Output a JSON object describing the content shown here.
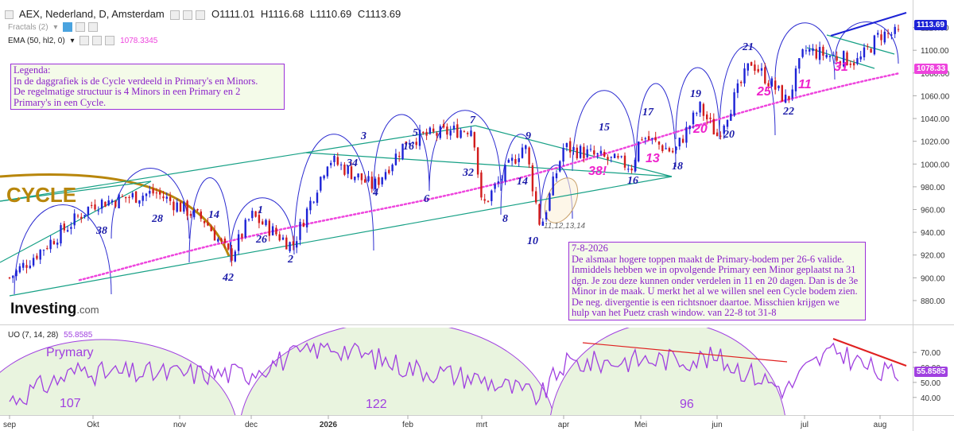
{
  "header": {
    "symbol": "AEX, Nederland, D, Amsterdam",
    "open": "O1111.01",
    "high": "H1116.68",
    "low": "L1110.69",
    "close": "C1113.69",
    "fractals": "Fractals (2)",
    "ema_label": "EMA (50, hl2, 0)",
    "ema_value": "1078.3345",
    "uo_label": "UO (7, 14, 28)",
    "uo_value": "55.8585"
  },
  "price_tags": {
    "last_price": "1113.69",
    "ema": "1078.33",
    "uo": "55.8585"
  },
  "logo": {
    "main": "Investing",
    "suffix": ".com"
  },
  "legend_box": {
    "lines": [
      "Legenda:",
      "In de daggrafiek is de Cycle verdeeld in Primary's en Minors.",
      "De regelmatige structuur is 4 Minors in een Primary en 2",
      "Primary's in een Cycle."
    ]
  },
  "comment_box": {
    "lines": [
      "7-8-2026",
      "De alsmaar hogere toppen maakt de Primary-bodem per 26-6 valide.",
      "Inmiddels hebben we in opvolgende Primary een Minor geplaatst na 31",
      "dgn. Je zou deze kunnen onder verdelen in 11 en 20 dagen. Dan is de 3e",
      "Minor in de maak. U merkt het al we willen snel een Cycle bodem zien.",
      "De neg. divergentie is een richtsnoer daartoe. Misschien krijgen we",
      "hulp van het Puetz crash window. van 22-8 tot 31-8"
    ]
  },
  "colors": {
    "up_candle": "#1d23d6",
    "down_candle": "#d21c1c",
    "cycle_arc": "#b8860b",
    "minor_arc": "#2b2bd0",
    "channel": "#16a085",
    "ema": "#ee44dd",
    "uo_line": "#a040e0",
    "uo_fill": "#e9f4df",
    "trend": "#e02020",
    "annotation_blue": "#1a1aa8",
    "annotation_magenta": "#ee22cc"
  },
  "chart_data": [
    {
      "type": "candlestick",
      "panel": "price",
      "x_labels": [
        "sep",
        "Okt",
        "nov",
        "dec",
        "2026",
        "feb",
        "mrt",
        "apr",
        "Mei",
        "jun",
        "jul",
        "aug"
      ],
      "y_ticks": [
        880,
        900,
        920,
        940,
        960,
        980,
        1000,
        1020,
        1040,
        1060,
        1080,
        1100,
        1120
      ],
      "ylim": [
        866,
        1126
      ],
      "anchors": [
        {
          "x": "sep",
          "close": 900
        },
        {
          "x": "Okt",
          "close": 965
        },
        {
          "x": "Okt-late",
          "close": 975
        },
        {
          "x": "nov-mid",
          "close": 950
        },
        {
          "x": "nov-late",
          "close": 918
        },
        {
          "x": "dec",
          "close": 955
        },
        {
          "x": "dec-mid",
          "close": 928
        },
        {
          "x": "2026",
          "close": 1005
        },
        {
          "x": "jan-late",
          "close": 980
        },
        {
          "x": "feb",
          "close": 1022
        },
        {
          "x": "feb-late",
          "close": 1032
        },
        {
          "x": "mrt",
          "close": 962
        },
        {
          "x": "mrt-mid",
          "close": 1018
        },
        {
          "x": "mrt-late",
          "close": 944
        },
        {
          "x": "apr",
          "close": 1015
        },
        {
          "x": "apr-late",
          "close": 998
        },
        {
          "x": "Mei",
          "close": 1025
        },
        {
          "x": "Mei-mid",
          "close": 1010
        },
        {
          "x": "Mei-late",
          "close": 1050
        },
        {
          "x": "jun",
          "close": 1025
        },
        {
          "x": "jun-mid",
          "close": 1090
        },
        {
          "x": "jun-late",
          "close": 1055
        },
        {
          "x": "jul",
          "close": 1100
        },
        {
          "x": "jul-late",
          "close": 1090
        },
        {
          "x": "aug",
          "close": 1114
        }
      ],
      "ema": {
        "start": 898,
        "end": 1078.33
      },
      "last_close": 1113.69
    },
    {
      "type": "line",
      "panel": "oscillator",
      "name": "UO (7, 14, 28)",
      "y_ticks": [
        40,
        50,
        60,
        70
      ],
      "ylim": [
        33,
        78
      ],
      "anchors": [
        {
          "x": "sep",
          "value": 38
        },
        {
          "x": "Okt",
          "value": 62
        },
        {
          "x": "nov",
          "value": 44
        },
        {
          "x": "dec",
          "value": 58
        },
        {
          "x": "2026",
          "value": 75
        },
        {
          "x": "feb",
          "value": 60
        },
        {
          "x": "mrt",
          "value": 52
        },
        {
          "x": "mrt-late",
          "value": 40
        },
        {
          "x": "apr",
          "value": 62
        },
        {
          "x": "Mei",
          "value": 65
        },
        {
          "x": "jun",
          "value": 66
        },
        {
          "x": "jun-late",
          "value": 45
        },
        {
          "x": "jul",
          "value": 58
        },
        {
          "x": "jul-mid",
          "value": 72
        },
        {
          "x": "aug",
          "value": 55.86
        }
      ],
      "last_value": 55.8585
    }
  ],
  "annotations": {
    "cycle_label": "CYCLE",
    "primary_label": "Prymary",
    "primary_lengths": [
      "107",
      "122",
      "96"
    ],
    "cluster_label": "11,12,13,14",
    "blue_numbers": [
      "38",
      "28",
      "14",
      "42",
      "1",
      "26",
      "2",
      "34",
      "3",
      "4",
      "16",
      "5",
      "6",
      "32",
      "7",
      "14",
      "8",
      "9",
      "10",
      "15",
      "16",
      "17",
      "18",
      "19",
      "20",
      "21",
      "22"
    ],
    "magenta_numbers": [
      "38!",
      "13",
      "20",
      "25",
      "11",
      "31"
    ]
  }
}
